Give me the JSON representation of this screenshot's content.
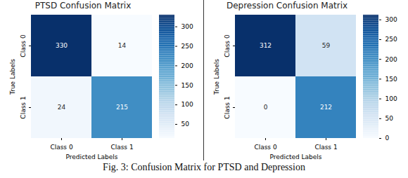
{
  "chart_data": [
    {
      "type": "heatmap",
      "title": "PTSD Confusion Matrix",
      "x_categories": [
        "Class 0",
        "Class 1"
      ],
      "y_categories": [
        "Class 0",
        "Class 1"
      ],
      "xlabel": "Predicted Labels",
      "ylabel": "True Labels",
      "cells": [
        [
          330,
          14
        ],
        [
          24,
          215
        ]
      ],
      "data_labels": true,
      "colorbar": {
        "range": [
          14,
          330
        ],
        "ticks": [
          50,
          100,
          150,
          200,
          250,
          300
        ]
      }
    },
    {
      "type": "heatmap",
      "title": "Depression Confusion Matrix",
      "x_categories": [
        "Class 0",
        "Class 1"
      ],
      "y_categories": [
        "Class 0",
        "Class 1"
      ],
      "xlabel": "Predicted Labels",
      "ylabel": "True Labels",
      "cells": [
        [
          312,
          59
        ],
        [
          0,
          212
        ]
      ],
      "data_labels": true,
      "colorbar": {
        "range": [
          0,
          312
        ],
        "ticks": [
          0,
          50,
          100,
          150,
          200,
          250,
          300
        ]
      }
    }
  ],
  "caption": "Fig. 3: Confusion Matrix for PTSD and Depression"
}
